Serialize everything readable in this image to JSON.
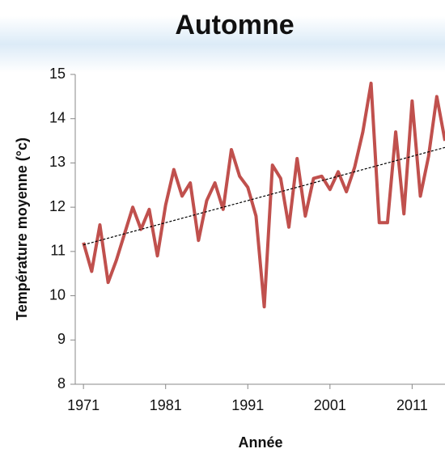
{
  "chart_data": {
    "type": "line",
    "title": "Automne",
    "xlabel": "Année",
    "ylabel": "Température moyenne (°c)",
    "x": [
      1971,
      1972,
      1973,
      1974,
      1975,
      1976,
      1977,
      1978,
      1979,
      1980,
      1981,
      1982,
      1983,
      1984,
      1985,
      1986,
      1987,
      1988,
      1989,
      1990,
      1991,
      1992,
      1993,
      1994,
      1995,
      1996,
      1997,
      1998,
      1999,
      2000,
      2001,
      2002,
      2003,
      2004,
      2005,
      2006,
      2007,
      2008,
      2009,
      2010,
      2011,
      2012,
      2013,
      2014,
      2015
    ],
    "series": [
      {
        "color": "#c0504d",
        "values": [
          11.2,
          10.55,
          11.6,
          10.3,
          10.8,
          11.4,
          12.0,
          11.5,
          11.95,
          10.9,
          12.05,
          12.85,
          12.25,
          12.55,
          11.25,
          12.15,
          12.55,
          11.95,
          13.3,
          12.7,
          12.45,
          11.8,
          9.75,
          12.95,
          12.65,
          11.55,
          13.1,
          11.8,
          12.65,
          12.7,
          12.4,
          12.8,
          12.35,
          12.9,
          13.7,
          14.8,
          11.65,
          11.65,
          13.7,
          11.85,
          14.4,
          12.25,
          13.15,
          14.5,
          13.5
        ]
      }
    ],
    "trend": {
      "x": [
        1971,
        2015
      ],
      "values": [
        11.15,
        13.35
      ],
      "color": "#000000"
    },
    "xlim": [
      1970,
      2015
    ],
    "xticks": [
      1971,
      1981,
      1991,
      2001,
      2011
    ],
    "ylim": [
      8,
      15
    ],
    "yticks": [
      8,
      9,
      10,
      11,
      12,
      13,
      14,
      15
    ]
  }
}
